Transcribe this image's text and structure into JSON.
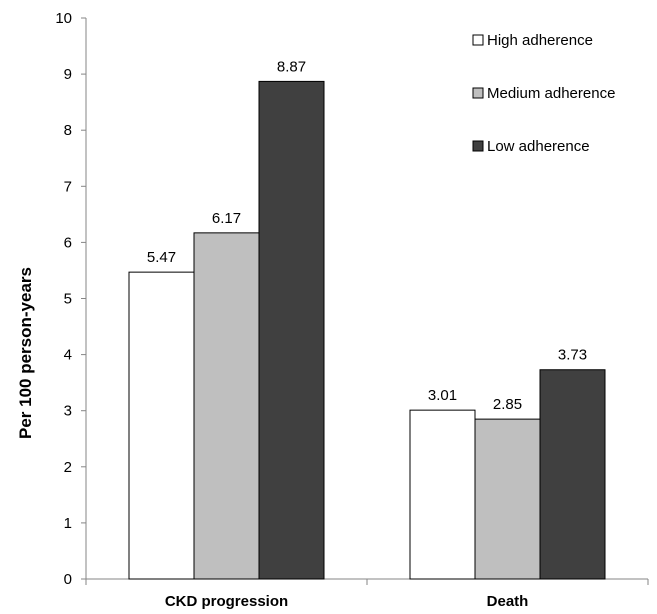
{
  "chart_data": {
    "type": "bar",
    "categories": [
      "CKD progression",
      "Death"
    ],
    "series": [
      {
        "name": "High adherence",
        "values": [
          5.47,
          3.01
        ],
        "color": "#ffffff"
      },
      {
        "name": "Medium adherence",
        "values": [
          6.17,
          2.85
        ],
        "color": "#bfbfbf"
      },
      {
        "name": "Low adherence",
        "values": [
          8.87,
          3.73
        ],
        "color": "#404040"
      }
    ],
    "data_labels": [
      [
        "5.47",
        "3.01"
      ],
      [
        "6.17",
        "2.85"
      ],
      [
        "8.87",
        "3.73"
      ]
    ],
    "title": "",
    "xlabel": "",
    "ylabel": "Per 100 person-years",
    "ylim": [
      0,
      10
    ],
    "yticks": [
      0,
      1,
      2,
      3,
      4,
      5,
      6,
      7,
      8,
      9,
      10
    ],
    "grid": false,
    "legend_position": "top-right",
    "bar_outline_color": "#000000"
  }
}
